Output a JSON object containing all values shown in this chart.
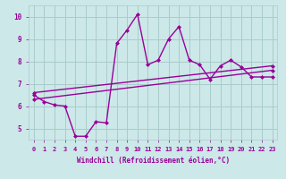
{
  "xlabel": "Windchill (Refroidissement éolien,°C)",
  "ylabel": "",
  "bg_color": "#cce8e8",
  "grid_color": "#aacccc",
  "line_color": "#990099",
  "xlim": [
    -0.5,
    23.5
  ],
  "ylim": [
    4.5,
    10.5
  ],
  "yticks": [
    5,
    6,
    7,
    8,
    9,
    10
  ],
  "xticks": [
    0,
    1,
    2,
    3,
    4,
    5,
    6,
    7,
    8,
    9,
    10,
    11,
    12,
    13,
    14,
    15,
    16,
    17,
    18,
    19,
    20,
    21,
    22,
    23
  ],
  "series": [
    {
      "x": [
        0,
        23
      ],
      "y": [
        6.3,
        7.6
      ],
      "style": "-",
      "marker": "D",
      "markersize": 2.0,
      "linewidth": 1.0
    },
    {
      "x": [
        0,
        23
      ],
      "y": [
        6.6,
        7.8
      ],
      "style": "-",
      "marker": "D",
      "markersize": 2.0,
      "linewidth": 1.0
    },
    {
      "x": [
        0,
        1,
        2,
        3,
        4,
        5,
        6,
        7,
        8,
        9,
        10,
        11,
        12,
        13,
        14,
        15,
        16,
        17,
        18,
        19,
        20,
        21,
        22,
        23
      ],
      "y": [
        6.5,
        6.2,
        6.05,
        6.0,
        4.65,
        4.65,
        5.3,
        5.25,
        8.8,
        9.4,
        10.1,
        7.85,
        8.05,
        9.0,
        9.55,
        8.05,
        7.85,
        7.2,
        7.8,
        8.05,
        7.75,
        7.3,
        7.3,
        7.3
      ],
      "style": "-",
      "marker": "D",
      "markersize": 2.0,
      "linewidth": 1.0
    }
  ]
}
